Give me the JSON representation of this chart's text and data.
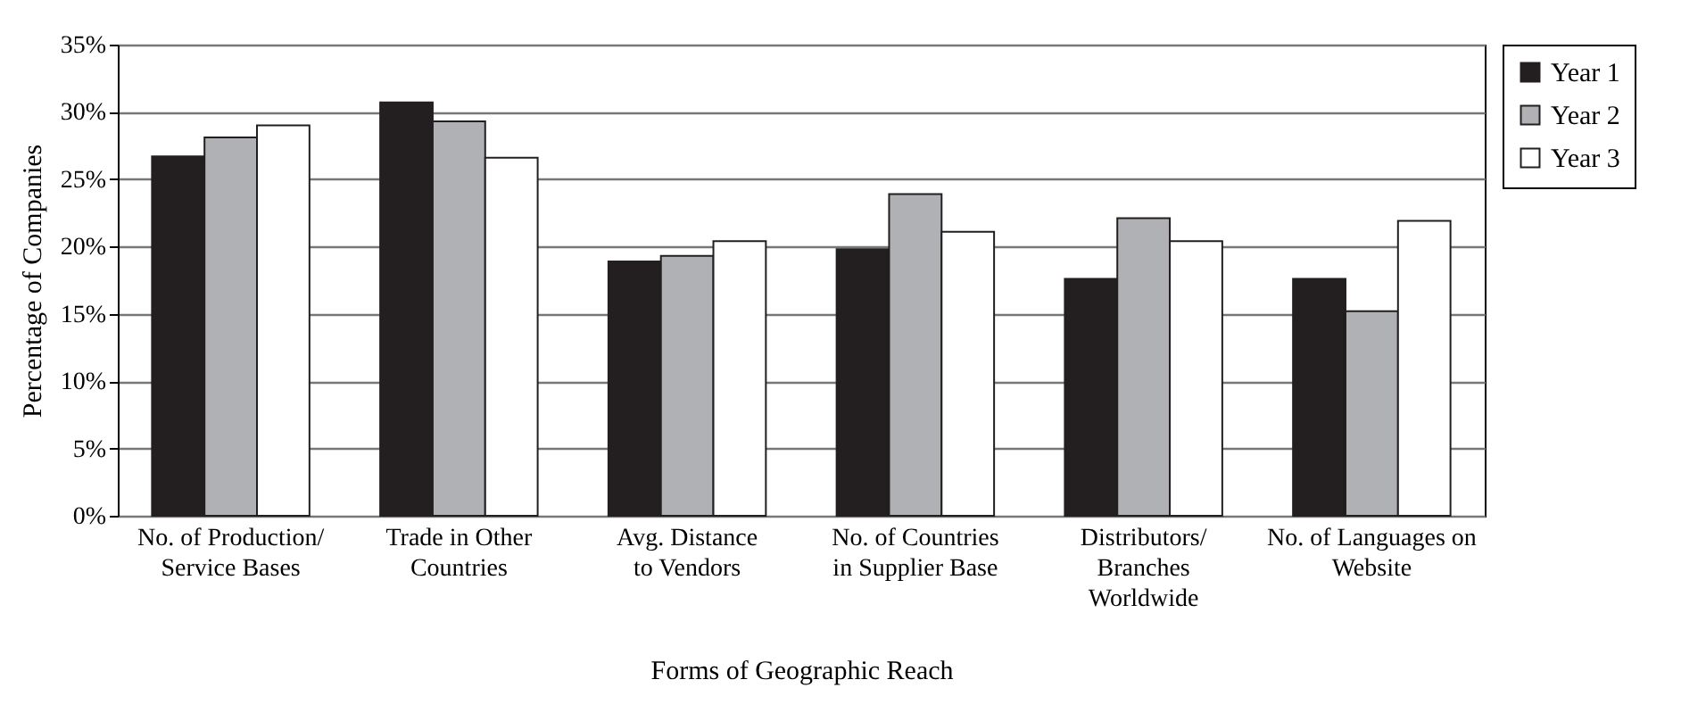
{
  "chart_data": {
    "type": "bar",
    "xlabel": "Forms of Geographic Reach",
    "ylabel": "Percentage of Companies",
    "categories": [
      "No. of Production/\nService Bases",
      "Trade in Other\nCountries",
      "Avg. Distance\nto Vendors",
      "No. of Countries\nin Supplier Base",
      "Distributors/\nBranches\nWorldwide",
      "No. of Languages on\nWebsite"
    ],
    "series": [
      {
        "name": "Year 1",
        "color": "#231f20",
        "values": [
          26.7,
          30.7,
          18.9,
          19.8,
          17.6,
          17.6
        ]
      },
      {
        "name": "Year 2",
        "color": "#b0b1b4",
        "values": [
          28.1,
          29.3,
          19.3,
          23.9,
          22.1,
          15.2
        ]
      },
      {
        "name": "Year 3",
        "color": "#ffffff",
        "values": [
          29.0,
          26.6,
          20.4,
          21.1,
          20.4,
          21.9
        ]
      }
    ],
    "ylim": [
      0,
      35
    ],
    "yticks": [
      {
        "value": 0,
        "label": "0%"
      },
      {
        "value": 5,
        "label": "5%"
      },
      {
        "value": 10,
        "label": "10%"
      },
      {
        "value": 15,
        "label": "15%"
      },
      {
        "value": 20,
        "label": "20%"
      },
      {
        "value": 25,
        "label": "25%"
      },
      {
        "value": 30,
        "label": "30%"
      },
      {
        "value": 35,
        "label": "35%"
      }
    ],
    "grid": "y",
    "legend": "right"
  }
}
